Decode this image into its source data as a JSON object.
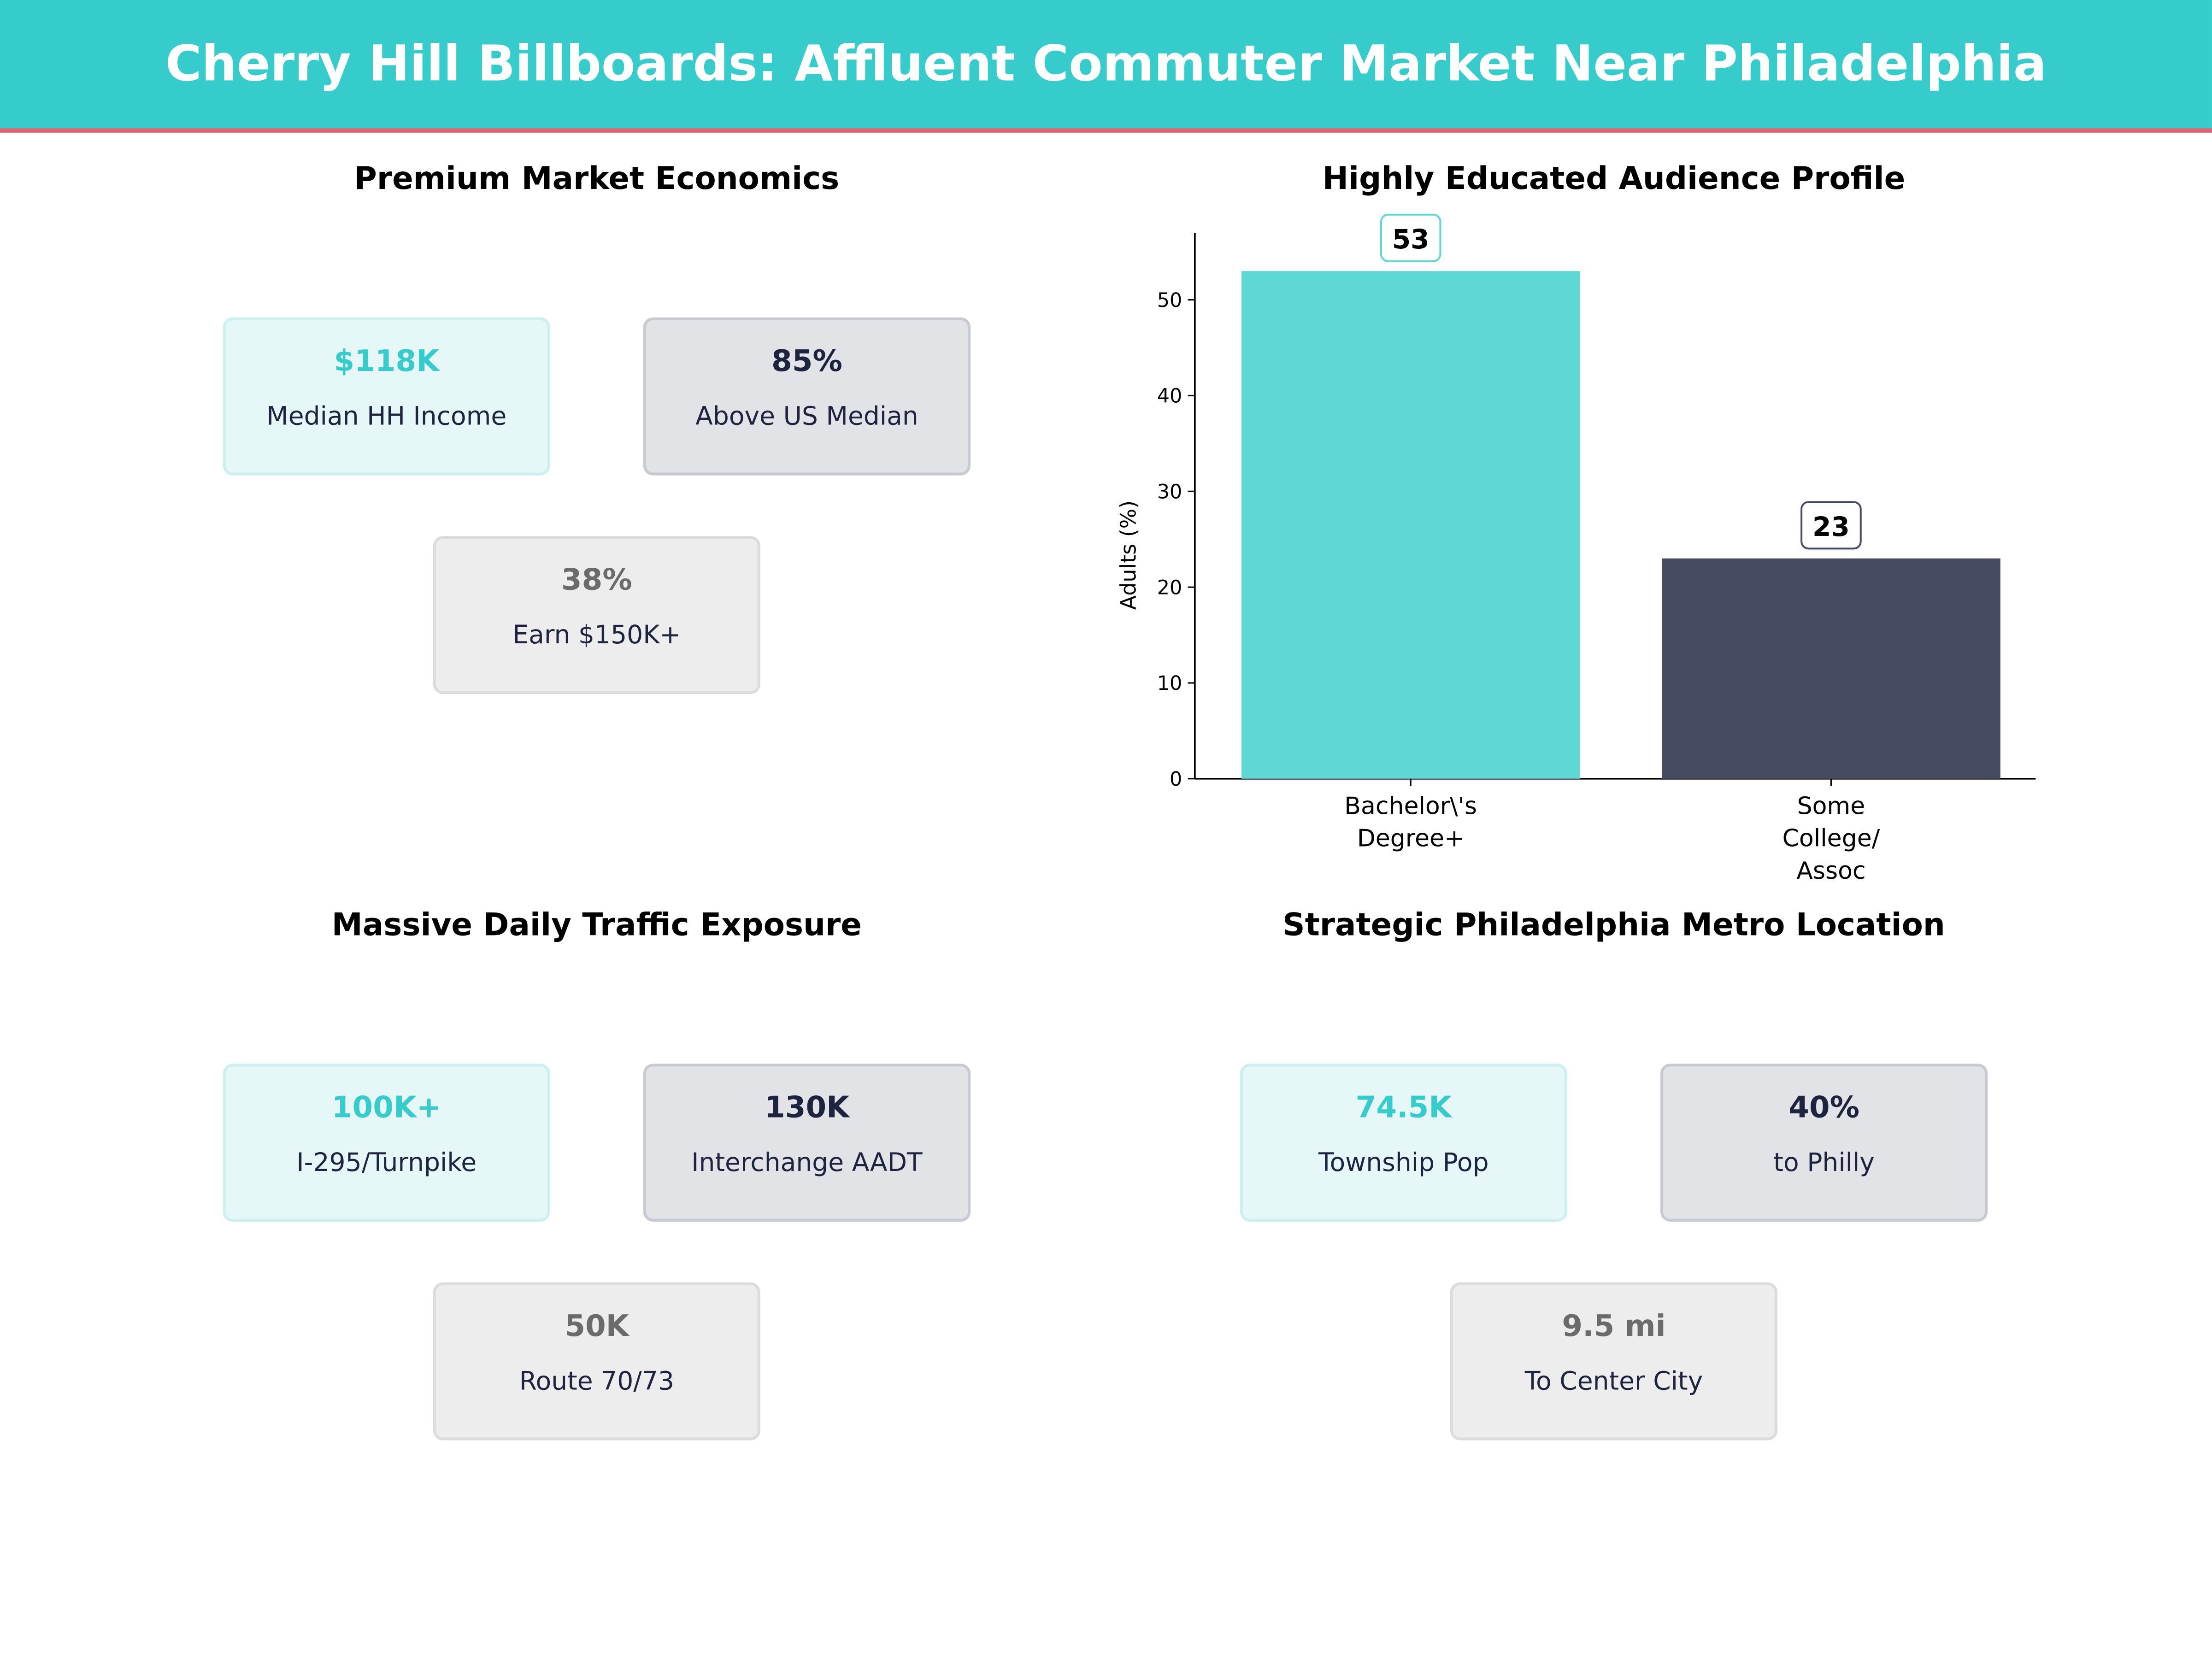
{
  "title": "Cherry Hill Billboards: Affluent Commuter Market Near Philadelphia",
  "colors": {
    "primary": "#36CCCC",
    "accent": "#E8606E",
    "dark": "#464B62"
  },
  "panels": [
    {
      "title": "Premium Market Economics",
      "cards": [
        {
          "value": "$118K",
          "label": "Median HH Income"
        },
        {
          "value": "85%",
          "label": "Above US Median"
        },
        {
          "value": "38%",
          "label": "Earn $150K+"
        }
      ]
    },
    {
      "title": "Massive Daily Traffic Exposure",
      "cards": [
        {
          "value": "100K+",
          "label": "I-295/Turnpike"
        },
        {
          "value": "130K",
          "label": "Interchange AADT"
        },
        {
          "value": "50K",
          "label": "Route 70/73"
        }
      ]
    },
    {
      "title": "Strategic Philadelphia Metro Location",
      "cards": [
        {
          "value": "74.5K",
          "label": "Township Pop"
        },
        {
          "value": "40%",
          "label": "to Philly"
        },
        {
          "value": "9.5 mi",
          "label": "To Center City"
        }
      ]
    }
  ],
  "chart_data": {
    "type": "bar",
    "title": "Highly Educated Audience Profile",
    "categories": [
      "Bachelor\\'s\nDegree+",
      "Some\nCollege/\nAssoc"
    ],
    "values": [
      53,
      23
    ],
    "colors": [
      "#5DD8D5",
      "#464B62"
    ],
    "ylabel": "Adults (%)",
    "xlabel": "",
    "ylim": [
      0,
      57
    ],
    "yticks": [
      0,
      10,
      20,
      30,
      40,
      50
    ],
    "grid": false
  }
}
